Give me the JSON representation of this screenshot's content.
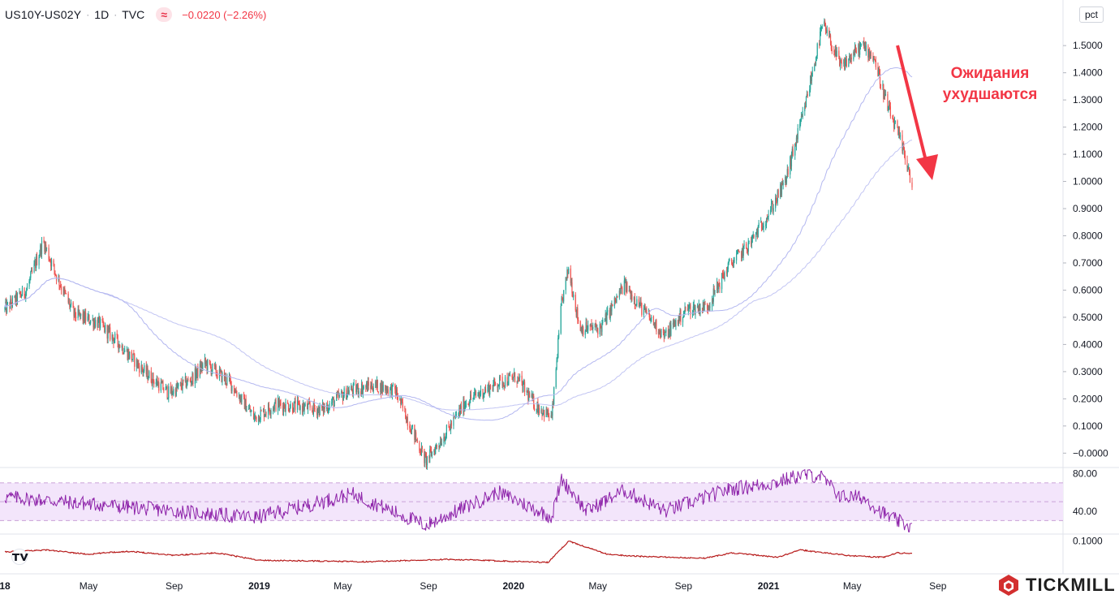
{
  "header": {
    "symbol": "US10Y-US02Y",
    "interval": "1D",
    "source": "TVC",
    "change": "−0.0220 (−2.26%)",
    "unit": "pct",
    "indicator_glyph": "≈"
  },
  "annotation": {
    "line1": "Ожидания",
    "line2": "ухудшаются"
  },
  "brand": {
    "name": "TICKMILL",
    "tv_logo": "tradingview-logo"
  },
  "colors": {
    "up": "#26a69a",
    "down": "#ef5350",
    "ma": "#b3b7f0",
    "rsi_line": "#8e24aa",
    "rsi_band": "#f3e5fb",
    "lower_line": "#b71c1c",
    "annotation": "#f23645"
  },
  "chart_data": [
    {
      "type": "candlestick",
      "title": "US10Y-US02Y",
      "y_axis_ticks": [
        "1.5000",
        "1.4000",
        "1.3000",
        "1.2000",
        "1.1000",
        "1.0000",
        "0.9000",
        "0.8000",
        "0.7000",
        "0.6000",
        "0.5000",
        "0.4000",
        "0.3000",
        "0.2000",
        "0.1000",
        "−0.0000"
      ],
      "ylim": [
        -0.02,
        1.62
      ],
      "x_axis_ticks": [
        "18",
        "May",
        "Sep",
        "2019",
        "May",
        "Sep",
        "2020",
        "May",
        "Sep",
        "2021",
        "May",
        "Sep"
      ],
      "close_path": [
        {
          "date": "2018-01-01",
          "value": 0.53
        },
        {
          "date": "2018-02-01",
          "value": 0.6
        },
        {
          "date": "2018-02-25",
          "value": 0.78
        },
        {
          "date": "2018-03-15",
          "value": 0.66
        },
        {
          "date": "2018-04-10",
          "value": 0.51
        },
        {
          "date": "2018-05-15",
          "value": 0.48
        },
        {
          "date": "2018-06-15",
          "value": 0.4
        },
        {
          "date": "2018-07-20",
          "value": 0.3
        },
        {
          "date": "2018-08-25",
          "value": 0.22
        },
        {
          "date": "2018-09-25",
          "value": 0.27
        },
        {
          "date": "2018-10-15",
          "value": 0.33
        },
        {
          "date": "2018-11-20",
          "value": 0.26
        },
        {
          "date": "2018-12-25",
          "value": 0.13
        },
        {
          "date": "2019-01-25",
          "value": 0.18
        },
        {
          "date": "2019-03-01",
          "value": 0.17
        },
        {
          "date": "2019-04-01",
          "value": 0.16
        },
        {
          "date": "2019-05-10",
          "value": 0.23
        },
        {
          "date": "2019-06-15",
          "value": 0.25
        },
        {
          "date": "2019-07-15",
          "value": 0.23
        },
        {
          "date": "2019-08-28",
          "value": -0.03
        },
        {
          "date": "2019-09-25",
          "value": 0.07
        },
        {
          "date": "2019-10-25",
          "value": 0.19
        },
        {
          "date": "2019-12-10",
          "value": 0.26
        },
        {
          "date": "2020-01-05",
          "value": 0.28
        },
        {
          "date": "2020-01-31",
          "value": 0.18
        },
        {
          "date": "2020-02-25",
          "value": 0.13
        },
        {
          "date": "2020-03-10",
          "value": 0.55
        },
        {
          "date": "2020-03-20",
          "value": 0.68
        },
        {
          "date": "2020-04-05",
          "value": 0.46
        },
        {
          "date": "2020-05-05",
          "value": 0.46
        },
        {
          "date": "2020-06-08",
          "value": 0.62
        },
        {
          "date": "2020-07-10",
          "value": 0.51
        },
        {
          "date": "2020-08-05",
          "value": 0.43
        },
        {
          "date": "2020-09-05",
          "value": 0.53
        },
        {
          "date": "2020-10-05",
          "value": 0.54
        },
        {
          "date": "2020-11-05",
          "value": 0.69
        },
        {
          "date": "2020-12-05",
          "value": 0.77
        },
        {
          "date": "2021-01-05",
          "value": 0.9
        },
        {
          "date": "2021-01-25",
          "value": 1.0
        },
        {
          "date": "2021-02-20",
          "value": 1.25
        },
        {
          "date": "2021-03-20",
          "value": 1.58
        },
        {
          "date": "2021-04-15",
          "value": 1.42
        },
        {
          "date": "2021-05-15",
          "value": 1.5
        },
        {
          "date": "2021-06-01",
          "value": 1.46
        },
        {
          "date": "2021-06-20",
          "value": 1.28
        },
        {
          "date": "2021-07-05",
          "value": 1.18
        },
        {
          "date": "2021-07-20",
          "value": 1.06
        },
        {
          "date": "2021-07-26",
          "value": 0.97
        }
      ],
      "last_change": "−0.0220 (−2.26%)"
    },
    {
      "type": "line",
      "title": "RSI",
      "y_axis_ticks": [
        "80.00",
        "40.00"
      ],
      "band": [
        30,
        70
      ],
      "ylim": [
        20,
        82
      ],
      "anchors": [
        {
          "date": "2018-01-01",
          "value": 55
        },
        {
          "date": "2018-06-01",
          "value": 46
        },
        {
          "date": "2018-12-25",
          "value": 33
        },
        {
          "date": "2019-05-15",
          "value": 58
        },
        {
          "date": "2019-08-28",
          "value": 25
        },
        {
          "date": "2019-12-10",
          "value": 60
        },
        {
          "date": "2020-02-25",
          "value": 34
        },
        {
          "date": "2020-03-10",
          "value": 74
        },
        {
          "date": "2020-04-15",
          "value": 40
        },
        {
          "date": "2020-06-08",
          "value": 62
        },
        {
          "date": "2020-08-05",
          "value": 40
        },
        {
          "date": "2020-11-05",
          "value": 63
        },
        {
          "date": "2021-01-10",
          "value": 70
        },
        {
          "date": "2021-02-15",
          "value": 78
        },
        {
          "date": "2021-03-15",
          "value": 78
        },
        {
          "date": "2021-04-15",
          "value": 55
        },
        {
          "date": "2021-05-15",
          "value": 55
        },
        {
          "date": "2021-06-20",
          "value": 35
        },
        {
          "date": "2021-07-26",
          "value": 22
        }
      ]
    },
    {
      "type": "line",
      "y_axis_ticks": [
        "0.1000"
      ],
      "ylim": [
        0.0,
        0.11
      ],
      "anchors": [
        {
          "date": "2018-01-01",
          "value": 0.063
        },
        {
          "date": "2018-03-01",
          "value": 0.07
        },
        {
          "date": "2018-05-01",
          "value": 0.055
        },
        {
          "date": "2018-06-01",
          "value": 0.062
        },
        {
          "date": "2018-07-01",
          "value": 0.065
        },
        {
          "date": "2018-09-01",
          "value": 0.052
        },
        {
          "date": "2018-11-01",
          "value": 0.06
        },
        {
          "date": "2019-01-01",
          "value": 0.035
        },
        {
          "date": "2019-06-01",
          "value": 0.03
        },
        {
          "date": "2019-10-01",
          "value": 0.038
        },
        {
          "date": "2020-02-20",
          "value": 0.028
        },
        {
          "date": "2020-03-20",
          "value": 0.1
        },
        {
          "date": "2020-05-15",
          "value": 0.055
        },
        {
          "date": "2020-07-01",
          "value": 0.048
        },
        {
          "date": "2020-10-01",
          "value": 0.042
        },
        {
          "date": "2020-11-10",
          "value": 0.06
        },
        {
          "date": "2021-01-15",
          "value": 0.045
        },
        {
          "date": "2021-02-15",
          "value": 0.07
        },
        {
          "date": "2021-05-01",
          "value": 0.05
        },
        {
          "date": "2021-06-15",
          "value": 0.045
        },
        {
          "date": "2021-07-05",
          "value": 0.06
        },
        {
          "date": "2021-07-26",
          "value": 0.058
        }
      ]
    }
  ]
}
